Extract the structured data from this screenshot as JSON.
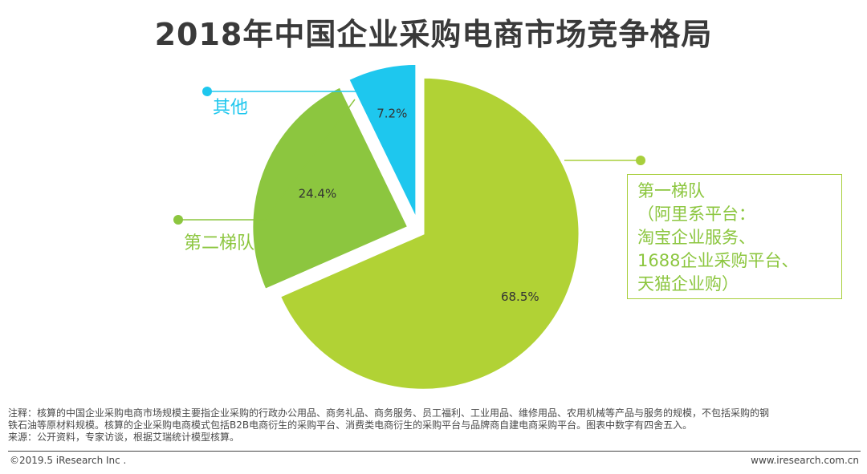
{
  "chart_data": {
    "type": "pie",
    "title": "2018年中国企业采购电商市场竞争格局",
    "slices": [
      {
        "name": "第一梯队",
        "value": 68.5,
        "label": "68.5%",
        "color": "#b1d235"
      },
      {
        "name": "第二梯队",
        "value": 24.4,
        "label": "24.4%",
        "color": "#8cc63f"
      },
      {
        "name": "其他",
        "value": 7.2,
        "label": "7.2%",
        "color": "#1ec7ee"
      }
    ],
    "callouts": {
      "other": "其他",
      "tier2": "第二梯队",
      "tier1_lines": [
        "第一梯队",
        "（阿里系平台：",
        "淘宝企业服务、",
        "1688企业采购平台、",
        "天猫企业购）"
      ]
    }
  },
  "notes": {
    "line1": "注释：核算的中国企业采购电商市场规模主要指企业采购的行政办公用品、商务礼品、商务服务、员工福利、工业用品、维修用品、农用机械等产品与服务的规模，不包括采购的钢",
    "line2": "铁石油等原材料规模。核算的企业采购电商模式包括B2B电商衍生的采购平台、消费类电商衍生的采购平台与品牌商自建电商采购平台。图表中数字有四舍五入。",
    "line3": "来源：公开资料，专家访谈，根据艾瑞统计模型核算。"
  },
  "footer": {
    "left": "©2019.5 iResearch Inc .",
    "right": "www.iresearch.com.cn"
  }
}
